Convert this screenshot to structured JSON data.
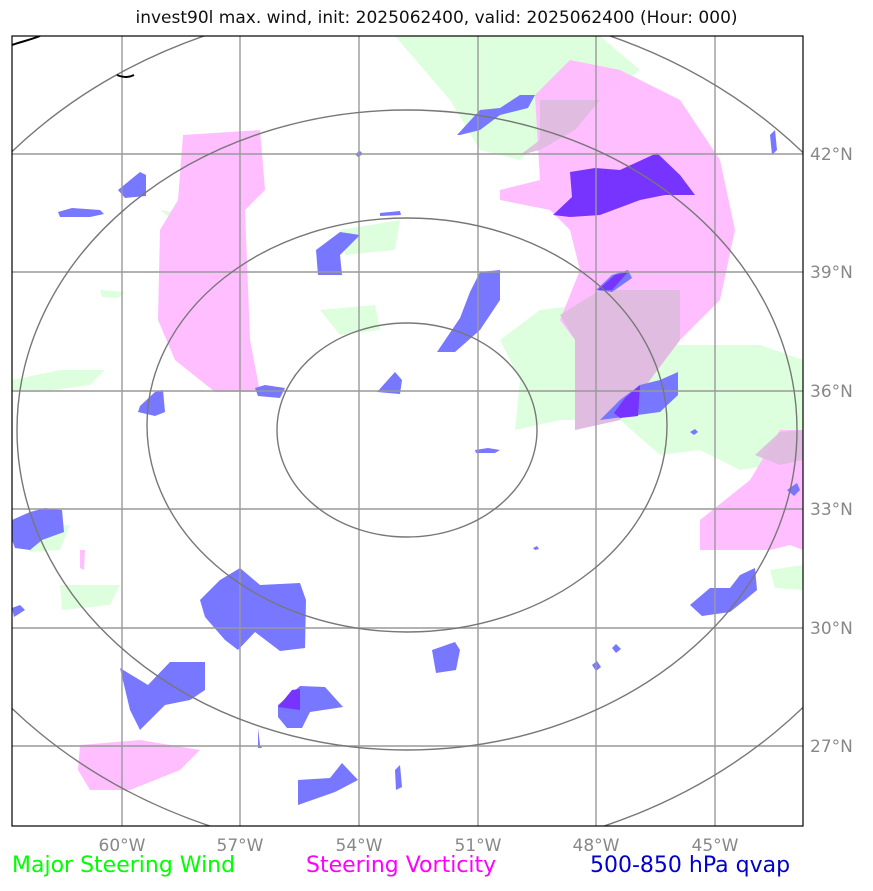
{
  "title": "invest90l max. wind, init: 2025062400, valid: 2025062400 (Hour: 000)",
  "axes": {
    "lon_labels": [
      "60°W",
      "57°W",
      "54°W",
      "51°W",
      "48°W",
      "45°W"
    ],
    "lat_labels": [
      "42°N",
      "39°N",
      "36°N",
      "33°N",
      "30°N",
      "27°N"
    ]
  },
  "legend": [
    {
      "label": "Major Steering Wind",
      "color": "#00ff00"
    },
    {
      "label": "Steering Vorticity",
      "color": "#ff00ff"
    },
    {
      "label": "500-850 hPa qvap",
      "color": "#0000cc"
    }
  ],
  "colors": {
    "wind_fill": "#ddffdd",
    "vorticity_fill": "#ffbbff",
    "qvap_fill": "#7777ff",
    "qvap_strong": "#7733ff",
    "grid": "#999999",
    "range_rings": "#777777"
  }
}
